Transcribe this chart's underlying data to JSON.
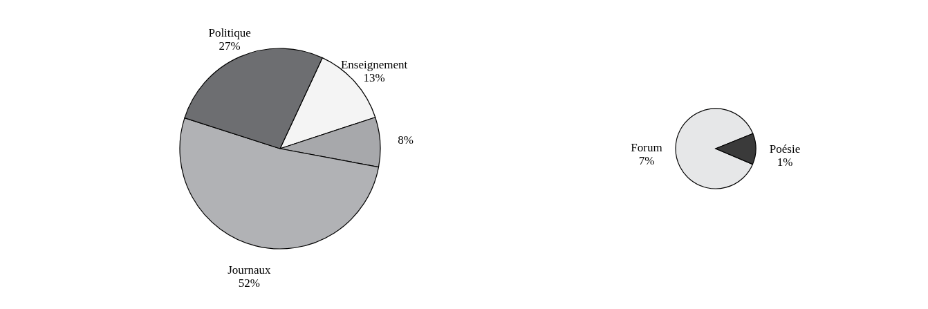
{
  "chart_data": [
    {
      "type": "pie",
      "categories": [
        "Enseignement",
        null,
        "Journaux",
        "Politique"
      ],
      "values": [
        13,
        8,
        52,
        27
      ],
      "value_labels": [
        "13%",
        "8%",
        "52%",
        "27%"
      ],
      "colors": [
        "#f4f4f4",
        "#a7a8ab",
        "#b1b2b5",
        "#6d6e71"
      ]
    },
    {
      "type": "pie",
      "categories": [
        "Forum",
        "Poésie"
      ],
      "values": [
        7,
        1
      ],
      "value_labels": [
        "7%",
        "1%"
      ],
      "colors": [
        "#e6e7e8",
        "#3a3a3a"
      ]
    }
  ]
}
